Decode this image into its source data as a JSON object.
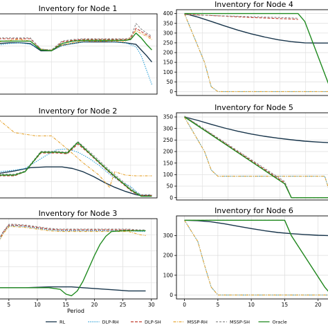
{
  "figure": {
    "xlabel": "Period",
    "legend": [
      {
        "label": "RL",
        "color": "#17344a",
        "dash": ""
      },
      {
        "label": "DLP-RH",
        "color": "#2a9fd6",
        "dash": "1.5,1.5"
      },
      {
        "label": "DLP-SH",
        "color": "#c0392b",
        "dash": "4,2"
      },
      {
        "label": "MSSP-RH",
        "color": "#e6a532",
        "dash": "4,1.5,1,1.5"
      },
      {
        "label": "MSSP-SH",
        "color": "#8c8c8c",
        "dash": "3,2"
      },
      {
        "label": "Oracle",
        "color": "#1f8a1f",
        "dash": ""
      }
    ]
  },
  "chart_data": [
    {
      "type": "line",
      "title": "Inventory for Node 1",
      "x_ticks": [],
      "y_ticks": [],
      "xlim": [
        0,
        30
      ],
      "ylim": [
        0,
        10
      ],
      "series": [
        {
          "name": "RL",
          "x": [
            0,
            2,
            4,
            6,
            8,
            10,
            12,
            14,
            16,
            18,
            20,
            22,
            24,
            26,
            28,
            29
          ],
          "y": [
            6.3,
            6.4,
            6.4,
            6.3,
            5.4,
            5.4,
            6.1,
            6.3,
            6.5,
            6.5,
            6.5,
            6.5,
            6.4,
            6.2,
            4.8,
            4.0
          ]
        },
        {
          "name": "DLP-RH",
          "x": [
            0,
            2,
            4,
            6,
            8,
            10,
            12,
            14,
            16,
            18,
            20,
            22,
            24,
            26,
            27,
            28,
            29
          ],
          "y": [
            6.1,
            6.3,
            6.4,
            6.2,
            5.6,
            5.5,
            6.0,
            6.3,
            6.5,
            6.6,
            6.6,
            6.5,
            6.4,
            5.9,
            4.8,
            3.0,
            1.2
          ]
        },
        {
          "name": "DLP-SH",
          "x": [
            0,
            2,
            4,
            6,
            8,
            10,
            12,
            14,
            16,
            18,
            20,
            22,
            24,
            25,
            26,
            27,
            28,
            29
          ],
          "y": [
            6.9,
            6.9,
            6.9,
            6.9,
            5.6,
            5.4,
            6.5,
            6.7,
            6.8,
            6.8,
            6.8,
            6.8,
            6.8,
            6.9,
            8.2,
            7.8,
            7.4,
            7.0
          ]
        },
        {
          "name": "MSSP-RH",
          "x": [
            0,
            2,
            4,
            6,
            8,
            10,
            12,
            14,
            16,
            18,
            20,
            22,
            24,
            26,
            28,
            29
          ],
          "y": [
            6.5,
            6.7,
            6.8,
            6.6,
            5.6,
            5.5,
            6.1,
            6.4,
            6.6,
            6.6,
            6.6,
            6.6,
            6.5,
            7.9,
            7.2,
            6.8
          ]
        },
        {
          "name": "MSSP-SH",
          "x": [
            0,
            2,
            4,
            6,
            8,
            10,
            12,
            14,
            16,
            18,
            20,
            22,
            24,
            25,
            26,
            27,
            28,
            29
          ],
          "y": [
            7.0,
            7.0,
            7.0,
            7.0,
            5.6,
            5.5,
            6.6,
            6.8,
            6.9,
            6.9,
            6.9,
            6.9,
            6.9,
            7.0,
            8.8,
            8.1,
            7.6,
            7.2
          ]
        },
        {
          "name": "Oracle",
          "x": [
            0,
            2,
            4,
            6,
            8,
            10,
            12,
            14,
            16,
            18,
            20,
            22,
            24,
            25,
            26,
            27,
            28,
            29
          ],
          "y": [
            6.6,
            6.6,
            6.6,
            6.6,
            5.5,
            5.4,
            6.3,
            6.6,
            6.7,
            6.7,
            6.7,
            6.7,
            6.7,
            6.8,
            7.6,
            7.0,
            6.2,
            5.5
          ]
        }
      ]
    },
    {
      "type": "line",
      "title": "Inventory for Node 4",
      "x_ticks": [],
      "y_ticks": [
        0,
        50,
        100,
        150,
        200,
        250,
        300,
        350,
        400
      ],
      "xlim": [
        -1.2,
        22
      ],
      "ylim": [
        -20,
        420
      ],
      "series": [
        {
          "name": "RL",
          "x": [
            0,
            2,
            4,
            6,
            8,
            10,
            12,
            14,
            16,
            18,
            20,
            22
          ],
          "y": [
            400,
            382,
            360,
            337,
            315,
            296,
            280,
            266,
            256,
            250,
            249,
            249
          ]
        },
        {
          "name": "DLP-RH",
          "x": [
            0,
            3,
            4,
            5,
            22
          ],
          "y": [
            400,
            150,
            25,
            0,
            0
          ]
        },
        {
          "name": "DLP-SH",
          "x": [
            0,
            10,
            16,
            17
          ],
          "y": [
            397,
            380,
            372,
            370
          ]
        },
        {
          "name": "MSSP-RH",
          "x": [
            0,
            3,
            4,
            5,
            22
          ],
          "y": [
            398,
            150,
            25,
            0,
            0
          ]
        },
        {
          "name": "MSSP-SH",
          "x": [
            0,
            10,
            16,
            17
          ],
          "y": [
            394,
            384,
            378,
            376
          ]
        },
        {
          "name": "Oracle",
          "x": [
            0,
            17,
            18,
            22
          ],
          "y": [
            400,
            400,
            360,
            0
          ]
        }
      ]
    },
    {
      "type": "line",
      "title": "Inventory for Node 2",
      "x_ticks": [],
      "y_ticks": [],
      "xlim": [
        0,
        30
      ],
      "ylim": [
        0,
        10
      ],
      "series": [
        {
          "name": "RL",
          "x": [
            0,
            3,
            6,
            9,
            12,
            14,
            16,
            18,
            20,
            22,
            24,
            26,
            27,
            28,
            29
          ],
          "y": [
            3.0,
            3.3,
            3.7,
            3.8,
            3.8,
            3.6,
            3.2,
            2.6,
            1.9,
            1.3,
            0.8,
            0.4,
            0.3,
            0.3,
            0.3
          ]
        },
        {
          "name": "DLP-RH",
          "x": [
            0,
            3,
            5,
            7,
            9,
            11,
            13,
            15,
            17,
            19,
            21,
            23,
            25,
            26,
            27,
            28,
            29
          ],
          "y": [
            3.2,
            3.4,
            3.6,
            4.4,
            5.2,
            5.9,
            6.0,
            5.6,
            4.9,
            4.0,
            2.9,
            2.0,
            1.4,
            0.8,
            0.3,
            0.3,
            0.3
          ]
        },
        {
          "name": "DLP-SH",
          "x": [
            0,
            3,
            5,
            8,
            11,
            13,
            15,
            17,
            19,
            21,
            23,
            25,
            26,
            27,
            29
          ],
          "y": [
            2.7,
            2.7,
            3.2,
            5.5,
            5.5,
            5.4,
            6.6,
            5.5,
            4.3,
            3.1,
            2.0,
            0.9,
            0.5,
            0.3,
            0.3
          ]
        },
        {
          "name": "MSSP-RH",
          "x": [
            0,
            3,
            7,
            10,
            13,
            16,
            19,
            21,
            22,
            24,
            26,
            27,
            29
          ],
          "y": [
            9.6,
            8.0,
            7.6,
            7.6,
            6.0,
            4.3,
            2.8,
            1.3,
            3.2,
            2.8,
            2.7,
            2.7,
            2.7
          ]
        },
        {
          "name": "MSSP-SH",
          "x": [
            0,
            3,
            5,
            8,
            11,
            13,
            15,
            17,
            19,
            21,
            23,
            25,
            26,
            27,
            29
          ],
          "y": [
            2.9,
            2.9,
            3.3,
            5.7,
            5.7,
            5.6,
            6.9,
            5.8,
            4.6,
            3.4,
            2.3,
            1.2,
            0.7,
            0.4,
            0.4
          ]
        },
        {
          "name": "Oracle",
          "x": [
            0,
            3,
            5,
            8,
            11,
            13,
            15,
            17,
            19,
            21,
            23,
            25,
            26,
            27,
            29
          ],
          "y": [
            2.8,
            2.8,
            3.2,
            5.6,
            5.6,
            5.5,
            6.8,
            5.6,
            4.4,
            3.2,
            2.1,
            1.0,
            0.6,
            0.2,
            0.2
          ]
        }
      ]
    },
    {
      "type": "line",
      "title": "Inventory for Node 5",
      "x_ticks": [],
      "y_ticks": [
        0,
        50,
        100,
        150,
        200,
        250,
        300,
        350
      ],
      "xlim": [
        -1.2,
        22
      ],
      "ylim": [
        -10,
        368
      ],
      "series": [
        {
          "name": "RL",
          "x": [
            0,
            2,
            4,
            6,
            8,
            10,
            12,
            14,
            16,
            18,
            20,
            22
          ],
          "y": [
            350,
            335,
            318,
            302,
            288,
            276,
            266,
            258,
            251,
            245,
            241,
            238
          ]
        },
        {
          "name": "DLP-RH",
          "x": [
            0,
            3,
            4,
            5,
            21,
            22
          ],
          "y": [
            350,
            200,
            120,
            93,
            93,
            0
          ]
        },
        {
          "name": "DLP-SH",
          "x": [
            0,
            15,
            16,
            22
          ],
          "y": [
            352,
            65,
            0,
            0
          ]
        },
        {
          "name": "MSSP-RH",
          "x": [
            0,
            3,
            4,
            5,
            21,
            22
          ],
          "y": [
            348,
            200,
            120,
            93,
            93,
            0
          ]
        },
        {
          "name": "MSSP-SH",
          "x": [
            0,
            15,
            16,
            22
          ],
          "y": [
            354,
            70,
            0,
            0
          ]
        },
        {
          "name": "Oracle",
          "x": [
            0,
            15,
            16,
            22
          ],
          "y": [
            350,
            60,
            0,
            0
          ]
        }
      ]
    },
    {
      "type": "line",
      "title": "Inventory for Node 3",
      "x_ticks": [
        5,
        10,
        15,
        20,
        25,
        30
      ],
      "y_ticks": [],
      "xlim": [
        3.2,
        31
      ],
      "ylim": [
        0,
        10
      ],
      "series": [
        {
          "name": "RL",
          "x": [
            0,
            4,
            8,
            12,
            14,
            16,
            18,
            20,
            22,
            24,
            26,
            28,
            29
          ],
          "y": [
            1.4,
            1.4,
            1.4,
            1.5,
            1.5,
            1.5,
            1.4,
            1.3,
            1.2,
            1.1,
            1.0,
            1.0,
            1.0
          ]
        },
        {
          "name": "DLP-RH",
          "x": [
            3.2,
            4,
            5,
            6,
            8,
            10,
            12,
            14,
            16,
            18,
            20,
            22,
            24,
            26,
            28,
            29
          ],
          "y": [
            7.2,
            8.2,
            9.1,
            9.1,
            9.0,
            8.8,
            8.6,
            8.5,
            8.5,
            8.5,
            8.5,
            8.5,
            8.5,
            8.5,
            8.4,
            8.4
          ]
        },
        {
          "name": "DLP-SH",
          "x": [
            3.2,
            4,
            5,
            6,
            8,
            10,
            12,
            14,
            16,
            18,
            20,
            22,
            24,
            26,
            28,
            29
          ],
          "y": [
            7.3,
            8.3,
            9.2,
            9.2,
            9.1,
            8.9,
            8.7,
            8.6,
            8.6,
            8.6,
            8.6,
            8.6,
            8.6,
            8.6,
            8.5,
            8.5
          ]
        },
        {
          "name": "MSSP-RH",
          "x": [
            3.2,
            4,
            5,
            6,
            8,
            10,
            12,
            14,
            16,
            18,
            20,
            22,
            24,
            26,
            27,
            28,
            29
          ],
          "y": [
            7.1,
            8.1,
            9.0,
            9.0,
            8.9,
            8.7,
            8.5,
            8.4,
            8.4,
            8.4,
            8.4,
            8.4,
            8.4,
            8.4,
            8.2,
            8.0,
            7.9
          ]
        },
        {
          "name": "MSSP-SH",
          "x": [
            3.2,
            4,
            5,
            6,
            8,
            10,
            12,
            14,
            16,
            18,
            20,
            22,
            24,
            26,
            28,
            29
          ],
          "y": [
            7.4,
            8.4,
            9.3,
            9.3,
            9.2,
            9.0,
            8.8,
            8.7,
            8.7,
            8.7,
            8.7,
            8.7,
            8.7,
            8.7,
            8.6,
            8.6
          ]
        },
        {
          "name": "Oracle",
          "x": [
            3.2,
            8,
            12,
            14,
            15,
            16,
            17,
            18,
            19,
            20,
            21,
            22,
            23,
            25,
            27,
            29
          ],
          "y": [
            1.4,
            1.4,
            1.4,
            1.2,
            0.6,
            0.4,
            1.0,
            2.2,
            3.8,
            5.4,
            6.8,
            7.8,
            8.4,
            8.5,
            8.5,
            8.5
          ]
        }
      ]
    },
    {
      "type": "line",
      "title": "Inventory for Node 6",
      "x_ticks": [
        0,
        5,
        10,
        15,
        20
      ],
      "y_ticks": [
        0,
        100,
        200,
        300
      ],
      "xlim": [
        -1.2,
        22
      ],
      "ylim": [
        -20,
        400
      ],
      "series": [
        {
          "name": "RL",
          "x": [
            0,
            2,
            4,
            6,
            8,
            10,
            12,
            14,
            16,
            18,
            20,
            22
          ],
          "y": [
            378,
            376,
            370,
            360,
            348,
            336,
            325,
            316,
            310,
            306,
            302,
            300
          ]
        },
        {
          "name": "DLP-RH",
          "x": [
            0,
            2,
            3,
            4,
            5,
            22
          ],
          "y": [
            378,
            270,
            150,
            40,
            0,
            0
          ]
        },
        {
          "name": "DLP-SH",
          "x": [
            0,
            15,
            16,
            21,
            22
          ],
          "y": [
            378,
            378,
            300,
            40,
            0
          ]
        },
        {
          "name": "MSSP-RH",
          "x": [
            0,
            2,
            3,
            4,
            5,
            22
          ],
          "y": [
            378,
            270,
            150,
            40,
            0,
            0
          ]
        },
        {
          "name": "MSSP-SH",
          "x": [
            0,
            15,
            16,
            21,
            22
          ],
          "y": [
            378,
            378,
            300,
            40,
            0
          ]
        },
        {
          "name": "Oracle",
          "x": [
            0,
            15,
            16,
            21,
            22
          ],
          "y": [
            378,
            378,
            300,
            40,
            0
          ]
        }
      ]
    }
  ]
}
